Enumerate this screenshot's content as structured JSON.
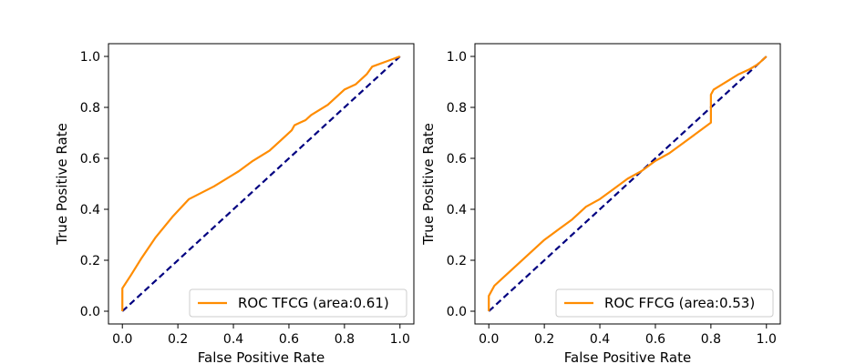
{
  "chart_data": [
    {
      "type": "line",
      "xlabel": "False Positive Rate",
      "ylabel": "True Positive Rate",
      "xlim": [
        -0.05,
        1.05
      ],
      "ylim": [
        -0.05,
        1.05
      ],
      "xticks": [
        "0.0",
        "0.2",
        "0.4",
        "0.6",
        "0.8",
        "1.0"
      ],
      "yticks": [
        "0.0",
        "0.2",
        "0.4",
        "0.6",
        "0.8",
        "1.0"
      ],
      "legend_position": "lower right",
      "grid": false,
      "series": [
        {
          "name": "ROC TFCG (area:0.61)",
          "color": "#ff8c00",
          "x": [
            0.0,
            0.0,
            0.0,
            0.03,
            0.07,
            0.12,
            0.18,
            0.24,
            0.33,
            0.42,
            0.47,
            0.53,
            0.57,
            0.61,
            0.62,
            0.64,
            0.66,
            0.68,
            0.71,
            0.74,
            0.77,
            0.8,
            0.84,
            0.88,
            0.9,
            0.95,
            1.0
          ],
          "y": [
            0.0,
            0.05,
            0.09,
            0.14,
            0.21,
            0.29,
            0.37,
            0.44,
            0.49,
            0.55,
            0.59,
            0.63,
            0.67,
            0.71,
            0.73,
            0.74,
            0.75,
            0.77,
            0.79,
            0.81,
            0.84,
            0.87,
            0.89,
            0.93,
            0.96,
            0.98,
            1.0
          ]
        },
        {
          "name": "baseline",
          "color": "#000080",
          "dashed": true,
          "x": [
            0.0,
            1.0
          ],
          "y": [
            0.0,
            1.0
          ]
        }
      ]
    },
    {
      "type": "line",
      "xlabel": "False Positive Rate",
      "ylabel": "True Positive Rate",
      "xlim": [
        -0.05,
        1.05
      ],
      "ylim": [
        -0.05,
        1.05
      ],
      "xticks": [
        "0.0",
        "0.2",
        "0.4",
        "0.6",
        "0.8",
        "1.0"
      ],
      "yticks": [
        "0.0",
        "0.2",
        "0.4",
        "0.6",
        "0.8",
        "1.0"
      ],
      "legend_position": "lower right",
      "grid": false,
      "series": [
        {
          "name": "ROC FFCG (area:0.53)",
          "color": "#ff8c00",
          "x": [
            0.0,
            0.0,
            0.02,
            0.05,
            0.1,
            0.15,
            0.2,
            0.25,
            0.3,
            0.35,
            0.4,
            0.45,
            0.5,
            0.55,
            0.6,
            0.65,
            0.7,
            0.75,
            0.8,
            0.8,
            0.81,
            0.84,
            0.87,
            0.9,
            0.94,
            0.97,
            1.0
          ],
          "y": [
            0.0,
            0.06,
            0.1,
            0.13,
            0.18,
            0.23,
            0.28,
            0.32,
            0.36,
            0.41,
            0.44,
            0.48,
            0.52,
            0.55,
            0.59,
            0.62,
            0.66,
            0.7,
            0.74,
            0.85,
            0.87,
            0.89,
            0.91,
            0.93,
            0.95,
            0.97,
            1.0
          ]
        },
        {
          "name": "baseline",
          "color": "#000080",
          "dashed": true,
          "x": [
            0.0,
            1.0
          ],
          "y": [
            0.0,
            1.0
          ]
        }
      ]
    }
  ]
}
